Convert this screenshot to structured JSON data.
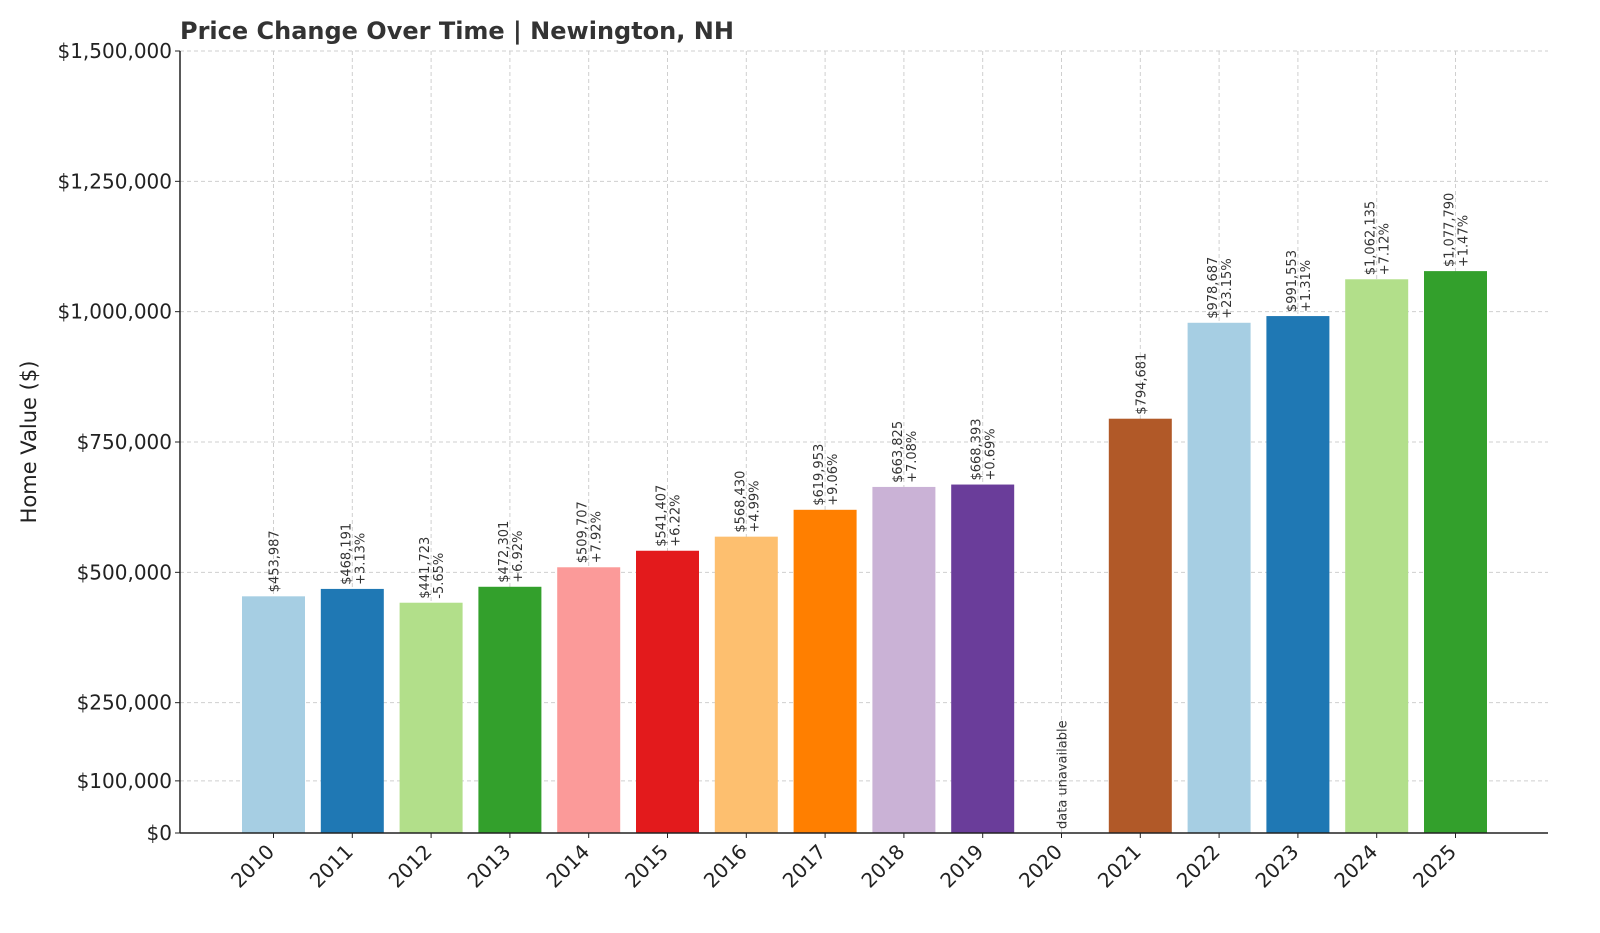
{
  "chart_data": {
    "type": "bar",
    "title": "Price Change Over Time | Newington, NH",
    "xlabel": "",
    "ylabel": "Home Value ($)",
    "ylim": [
      0,
      1500000
    ],
    "yticks": [
      0,
      100000,
      250000,
      500000,
      750000,
      1000000,
      1250000,
      1500000
    ],
    "ytick_labels": [
      "$0",
      "$100,000",
      "$250,000",
      "$500,000",
      "$750,000",
      "$1,000,000",
      "$1,250,000",
      "$1,500,000"
    ],
    "grid": true,
    "categories": [
      "2010",
      "2011",
      "2012",
      "2013",
      "2014",
      "2015",
      "2016",
      "2017",
      "2018",
      "2019",
      "2020",
      "2021",
      "2022",
      "2023",
      "2024",
      "2025"
    ],
    "values": [
      453987,
      468191,
      441723,
      472301,
      509707,
      541407,
      568430,
      619953,
      663825,
      668393,
      null,
      794681,
      978687,
      991553,
      1062135,
      1077790
    ],
    "value_labels": [
      "$453,987",
      "$468,191",
      "$441,723",
      "$472,301",
      "$509,707",
      "$541,407",
      "$568,430",
      "$619,953",
      "$663,825",
      "$668,393",
      "data unavailable",
      "$794,681",
      "$978,687",
      "$991,553",
      "$1,062,135",
      "$1,077,790"
    ],
    "change_labels": [
      "",
      "+3.13%",
      "-5.65%",
      "+6.92%",
      "+7.92%",
      "+6.22%",
      "+4.99%",
      "+9.06%",
      "+7.08%",
      "+0.69%",
      "",
      "",
      "+23.15%",
      "+1.31%",
      "+7.12%",
      "+1.47%"
    ],
    "colors": [
      "#a6cee3",
      "#1f78b4",
      "#b2df8a",
      "#33a02c",
      "#fb9a99",
      "#e31a1c",
      "#fdbf6f",
      "#ff7f00",
      "#cab2d6",
      "#6a3d9a",
      "#ffff99",
      "#b15928",
      "#a6cee3",
      "#1f78b4",
      "#b2df8a",
      "#33a02c"
    ]
  }
}
